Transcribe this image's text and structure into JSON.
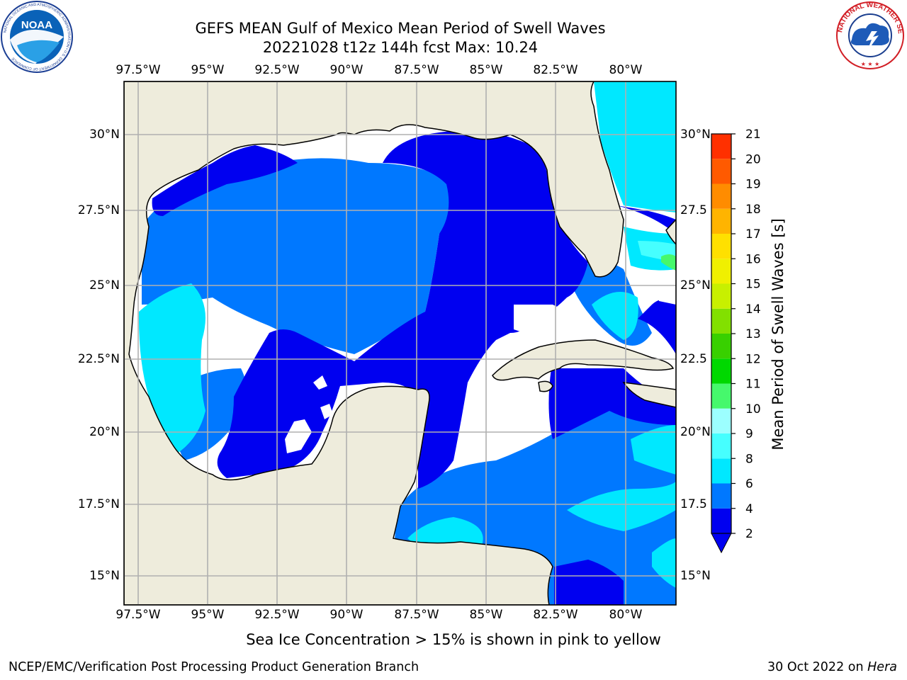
{
  "title": {
    "line1": "GEFS MEAN Gulf of Mexico Mean Period of Swell Waves",
    "line2": "20221028 t12z 144h fcst   Max: 10.24"
  },
  "map": {
    "lon_labels": [
      "97.5°W",
      "95°W",
      "92.5°W",
      "90°W",
      "87.5°W",
      "85°W",
      "82.5°W",
      "80°W"
    ],
    "lat_labels": [
      "30°N",
      "27.5°N",
      "25°N",
      "22.5°N",
      "20°N",
      "17.5°N",
      "15°N"
    ],
    "lat_labels_right": [
      "30°N",
      "27.5",
      "25°N",
      "22.5",
      "20°N",
      "17.5",
      "15°N"
    ],
    "extent": {
      "lon_min": -98,
      "lon_max": -78.5,
      "lat_min": 14,
      "lat_max": 31.7
    },
    "land_color": "#eeecdc",
    "grid_color": "#b0b0b0"
  },
  "colorbar": {
    "label": "Mean Period of Swell Waves [s]",
    "ticks": [
      "2",
      "4",
      "6",
      "8",
      "9",
      "10",
      "11",
      "12",
      "13",
      "14",
      "15",
      "16",
      "17",
      "18",
      "19",
      "20",
      "21"
    ],
    "colors": [
      "#0000f0",
      "#0078ff",
      "#00e8ff",
      "#46ffff",
      "#9cffff",
      "#46f86c",
      "#00d800",
      "#38d000",
      "#82e000",
      "#c8f000",
      "#f0f000",
      "#ffe000",
      "#ffb400",
      "#ff8c00",
      "#ff5a00",
      "#ff3000",
      "#ff0000"
    ],
    "extend": "min"
  },
  "caption": "Sea Ice Concentration > 15% is shown in pink to yellow",
  "footer": {
    "left": "NCEP/EMC/Verification Post Processing Product Generation Branch",
    "date": "30 Oct 2022 on ",
    "machine": "Hera"
  },
  "logos": {
    "noaa": "NOAA",
    "noaa_ring": "NATIONAL OCEANIC AND ATMOSPHERIC ADMINISTRATION • U.S. DEPARTMENT OF COMMERCE",
    "nws_ring": "NATIONAL WEATHER SERVICE"
  }
}
